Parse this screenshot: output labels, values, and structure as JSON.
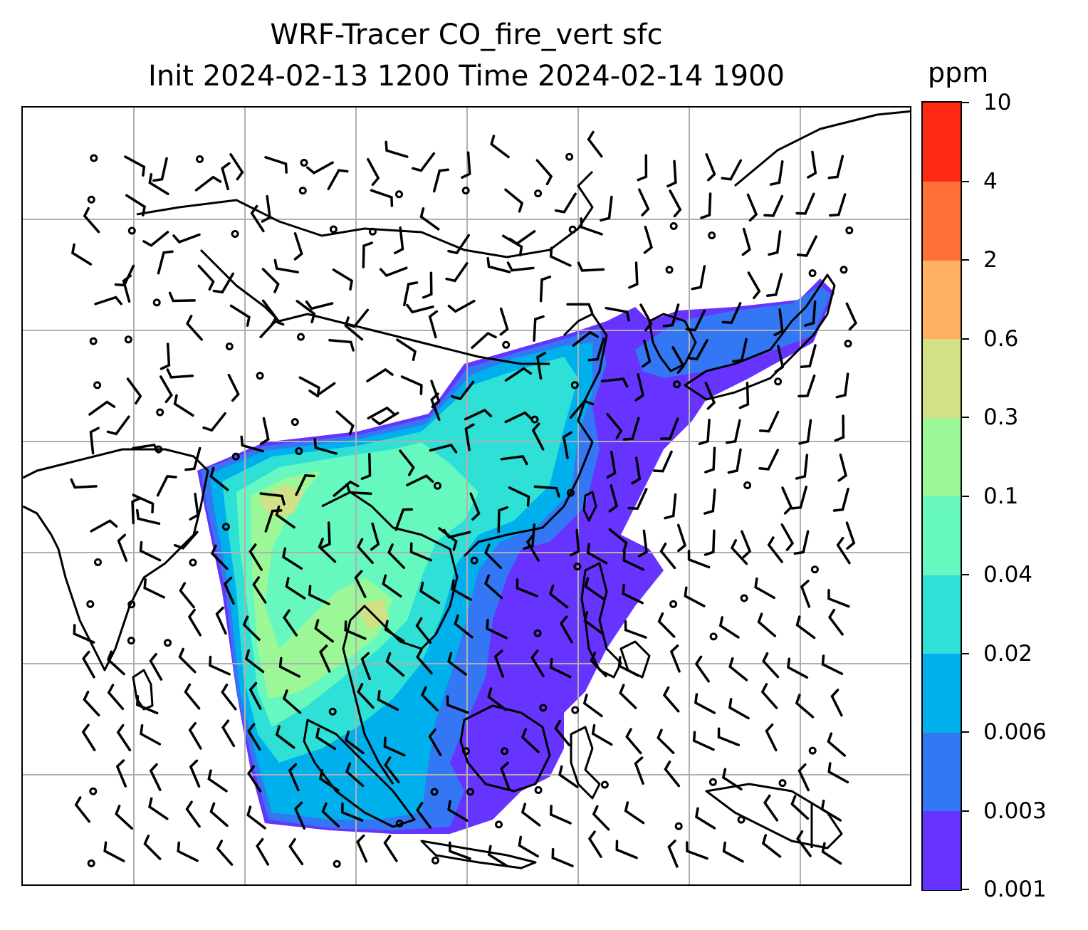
{
  "title": {
    "line1": "WRF-Tracer CO_fire_vert sfc",
    "line2": "Init 2024-02-13 1200 Time 2024-02-14 1900"
  },
  "colorbar": {
    "unit": "ppm",
    "levels": [
      "0.001",
      "0.003",
      "0.006",
      "0.02",
      "0.04",
      "0.1",
      "0.3",
      "0.6",
      "2",
      "4",
      "10"
    ],
    "colors": [
      "#6633ff",
      "#3377f5",
      "#00b0ec",
      "#2ee0d6",
      "#66f8be",
      "#9cf896",
      "#d2e088",
      "#ffb060",
      "#ff7038",
      "#ff2a14"
    ]
  },
  "map": {
    "gridline_color": "#b0b0b0",
    "coastline_color": "#000000",
    "wind_barb_color": "#000000"
  }
}
